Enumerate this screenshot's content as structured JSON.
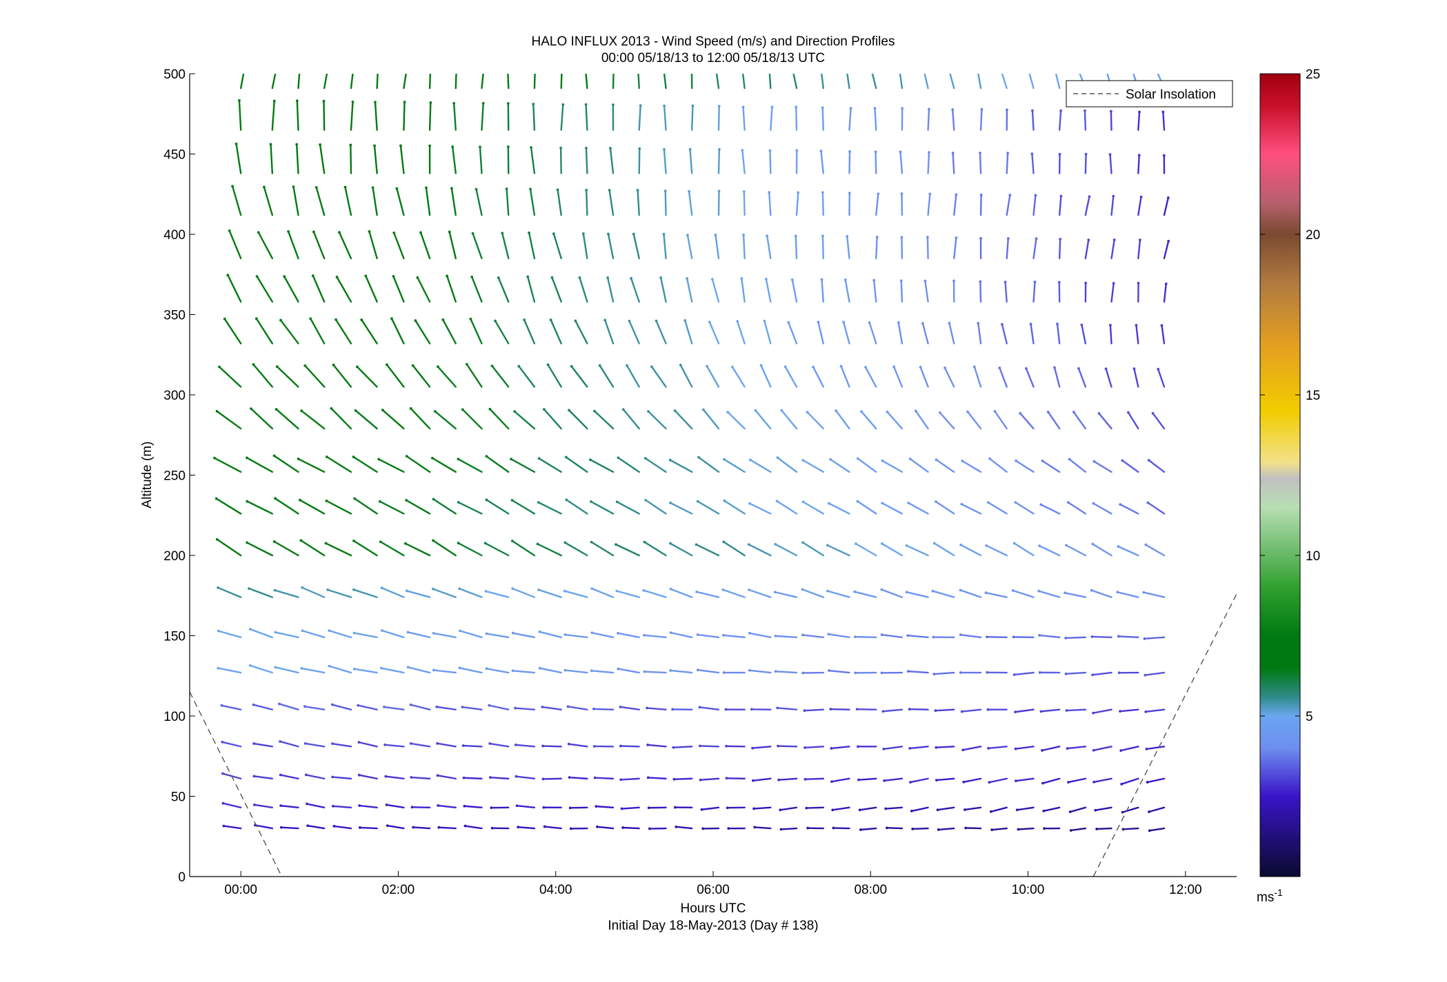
{
  "chart_data": {
    "type": "vector-field",
    "title": "HALO INFLUX 2013 - Wind Speed (m/s) and Direction Profiles",
    "subtitle": "00:00 05/18/13 to 12:00 05/18/13  UTC",
    "xlabel": "Hours UTC",
    "xlabel2": "Initial Day 18-May-2013 (Day # 138)",
    "ylabel": "Altitude (m)",
    "xlim": [
      -0.65,
      12.65
    ],
    "ylim": [
      0,
      500
    ],
    "xticks": [
      0,
      2,
      4,
      6,
      8,
      10,
      12
    ],
    "xtick_labels": [
      "00:00",
      "02:00",
      "04:00",
      "06:00",
      "08:00",
      "10:00",
      "12:00"
    ],
    "yticks": [
      0,
      50,
      100,
      150,
      200,
      250,
      300,
      350,
      400,
      450,
      500
    ],
    "ytick_labels": [
      "0",
      "50",
      "100",
      "150",
      "200",
      "250",
      "300",
      "350",
      "400",
      "450",
      "500"
    ],
    "grid": false,
    "legend": {
      "position": "top-right",
      "entries": [
        {
          "label": "Solar Insolation",
          "style": "dashed",
          "color": "#555555"
        }
      ]
    },
    "colorbar": {
      "range": [
        0,
        25
      ],
      "ticks": [
        5,
        10,
        15,
        20,
        25
      ],
      "tick_labels": [
        "5",
        "10",
        "15",
        "20",
        "25"
      ],
      "unit": "ms",
      "unit_exp": "-1",
      "stops": [
        {
          "v": 0,
          "c": "#0a0a30"
        },
        {
          "v": 2.5,
          "c": "#3a14c8"
        },
        {
          "v": 4.0,
          "c": "#6f8ef0"
        },
        {
          "v": 5.0,
          "c": "#6aa6f0"
        },
        {
          "v": 5.6,
          "c": "#2e8a88"
        },
        {
          "v": 6.5,
          "c": "#007a10"
        },
        {
          "v": 7.5,
          "c": "#007a10"
        },
        {
          "v": 9.0,
          "c": "#2fa02f"
        },
        {
          "v": 11.5,
          "c": "#b8deb4"
        },
        {
          "v": 12.4,
          "c": "#c0c0c0"
        },
        {
          "v": 12.9,
          "c": "#f2e18a"
        },
        {
          "v": 14.5,
          "c": "#f2cc00"
        },
        {
          "v": 16.5,
          "c": "#e4a020"
        },
        {
          "v": 18.5,
          "c": "#b07a40"
        },
        {
          "v": 20.0,
          "c": "#7a4a30"
        },
        {
          "v": 21.0,
          "c": "#b8606e"
        },
        {
          "v": 22.5,
          "c": "#ff4f7f"
        },
        {
          "v": 24.0,
          "c": "#c8102a"
        },
        {
          "v": 25.0,
          "c": "#a00010"
        }
      ]
    },
    "solar_insolation": [
      {
        "x": [
          -0.65,
          0.52
        ],
        "y": [
          115,
          0
        ]
      },
      {
        "x": [
          10.83,
          12.65
        ],
        "y": [
          0,
          176
        ]
      }
    ],
    "x_hours": [
      0,
      0.4,
      0.73,
      1.06,
      1.4,
      1.73,
      2.07,
      2.4,
      2.73,
      3.06,
      3.4,
      3.73,
      4.07,
      4.4,
      4.73,
      5.06,
      5.4,
      5.73,
      6.07,
      6.4,
      6.73,
      7.06,
      7.4,
      7.73,
      8.07,
      8.4,
      8.73,
      9.06,
      9.4,
      9.73,
      10.07,
      10.4,
      10.73,
      11.06,
      11.4,
      11.73
    ],
    "altitudes": [
      30,
      43,
      61,
      81,
      104,
      127,
      149,
      174,
      200,
      226,
      252,
      279,
      305,
      332,
      358,
      385,
      412,
      438,
      465,
      491
    ],
    "profiles": [
      {
        "alt": 30,
        "speed_start": 2.5,
        "speed_end": 1.5,
        "dir_start": 278,
        "dir_end": 265
      },
      {
        "alt": 43,
        "speed_start": 2.8,
        "speed_end": 2.0,
        "dir_start": 280,
        "dir_end": 255
      },
      {
        "alt": 61,
        "speed_start": 3.0,
        "speed_end": 2.6,
        "dir_start": 282,
        "dir_end": 255
      },
      {
        "alt": 81,
        "speed_start": 3.2,
        "speed_end": 2.8,
        "dir_start": 283,
        "dir_end": 258
      },
      {
        "alt": 104,
        "speed_start": 3.5,
        "speed_end": 3.0,
        "dir_start": 285,
        "dir_end": 262
      },
      {
        "alt": 127,
        "speed_start": 5.0,
        "speed_end": 3.2,
        "dir_start": 285,
        "dir_end": 265
      },
      {
        "alt": 149,
        "speed_start": 5.0,
        "speed_end": 3.4,
        "dir_start": 287,
        "dir_end": 270
      },
      {
        "alt": 174,
        "speed_start": 5.5,
        "speed_end": 4.0,
        "dir_start": 290,
        "dir_end": 285
      },
      {
        "alt": 200,
        "speed_start": 7.0,
        "speed_end": 4.2,
        "dir_start": 300,
        "dir_end": 298
      },
      {
        "alt": 226,
        "speed_start": 7.0,
        "speed_end": 3.6,
        "dir_start": 300,
        "dir_end": 300
      },
      {
        "alt": 252,
        "speed_start": 7.5,
        "speed_end": 3.4,
        "dir_start": 300,
        "dir_end": 305
      },
      {
        "alt": 279,
        "speed_start": 7.5,
        "speed_end": 3.2,
        "dir_start": 310,
        "dir_end": 325
      },
      {
        "alt": 305,
        "speed_start": 7.5,
        "speed_end": 3.0,
        "dir_start": 315,
        "dir_end": 345
      },
      {
        "alt": 332,
        "speed_start": 7.5,
        "speed_end": 2.8,
        "dir_start": 325,
        "dir_end": 355
      },
      {
        "alt": 358,
        "speed_start": 7.5,
        "speed_end": 2.8,
        "dir_start": 330,
        "dir_end": 5
      },
      {
        "alt": 385,
        "speed_start": 7.5,
        "speed_end": 2.8,
        "dir_start": 335,
        "dir_end": 10
      },
      {
        "alt": 412,
        "speed_start": 7.5,
        "speed_end": 2.8,
        "dir_start": 345,
        "dir_end": 10
      },
      {
        "alt": 438,
        "speed_start": 7.5,
        "speed_end": 2.8,
        "dir_start": 355,
        "dir_end": 0
      },
      {
        "alt": 465,
        "speed_start": 7.5,
        "speed_end": 2.8,
        "dir_start": 0,
        "dir_end": 0
      },
      {
        "alt": 491,
        "speed_start": 7.5,
        "speed_end": 4.5,
        "dir_start": 10,
        "dir_end": 340
      }
    ]
  }
}
